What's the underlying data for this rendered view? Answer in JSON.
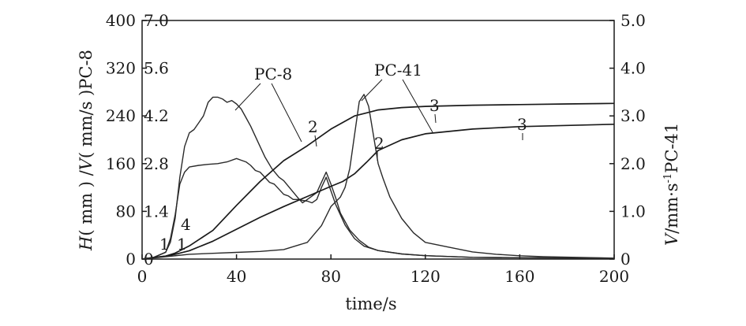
{
  "chart_data": {
    "type": "line",
    "xlabel": "time/s",
    "ylabel_left": "H (mm) /V (mm/s) PC-8",
    "ylabel_left_parts": {
      "h": "H",
      "mm1": "( mm )",
      "sep": " /",
      "v": "V",
      "mm2": "( mm/s )",
      "tail": "PC-8"
    },
    "ylabel_right": "V/mm·s⁻¹PC-41",
    "ylabel_right_parts": {
      "v": "V",
      "unit": "/mm·s",
      "sup": "-1",
      "tail": "PC-41"
    },
    "xlim": [
      0,
      200
    ],
    "x_ticks": [
      "0",
      "40",
      "80",
      "120",
      "160",
      "200"
    ],
    "x_tick_values": [
      0,
      40,
      80,
      120,
      160,
      200
    ],
    "ylim_H": [
      0,
      400
    ],
    "ylim_V_pc8": [
      0,
      7.0
    ],
    "ylim_V_pc41": [
      0,
      5.0
    ],
    "y_ticks_H": [
      "0",
      "80",
      "160",
      "240",
      "320",
      "400"
    ],
    "y_ticks_V_pc8": [
      "0",
      "1.4",
      "2.8",
      "4.2",
      "5.6",
      "7.0"
    ],
    "y_ticks_V_pc41": [
      "0",
      "1.0",
      "2.0",
      "3.0",
      "4.0",
      "5.0"
    ],
    "grid": false,
    "annotations": {
      "pc8": "PC-8",
      "pc41": "PC-41",
      "n1": "1",
      "n1b": "1",
      "n4": "4",
      "n2a": "2",
      "n2b": "2",
      "n3a": "3",
      "n3b": "3"
    },
    "series": [
      {
        "axis": "V_pc8",
        "x": [
          0,
          5,
          10,
          12,
          14,
          16,
          18,
          20,
          22,
          24,
          26,
          28,
          30,
          32,
          34,
          36,
          38,
          40,
          42,
          44,
          46,
          48,
          50,
          52,
          55,
          58,
          60,
          63,
          66,
          68,
          70,
          72,
          74,
          76,
          78,
          80,
          82,
          84,
          88,
          92,
          96,
          100,
          110,
          120,
          140,
          160,
          180,
          200
        ],
        "values": [
          0,
          0.05,
          0.2,
          0.5,
          1.2,
          2.4,
          3.3,
          3.7,
          3.8,
          4.0,
          4.2,
          4.6,
          4.75,
          4.75,
          4.7,
          4.6,
          4.65,
          4.55,
          4.4,
          4.15,
          3.9,
          3.6,
          3.3,
          3.0,
          2.65,
          2.4,
          2.3,
          2.05,
          1.8,
          1.65,
          1.75,
          1.85,
          1.95,
          2.25,
          2.55,
          2.2,
          1.8,
          1.35,
          0.85,
          0.55,
          0.35,
          0.25,
          0.15,
          0.1,
          0.05,
          0.04,
          0.03,
          0.02
        ]
      },
      {
        "axis": "V_pc8",
        "x": [
          0,
          5,
          10,
          12,
          14,
          16,
          18,
          20,
          24,
          28,
          32,
          36,
          40,
          42,
          44,
          46,
          48,
          50,
          52,
          54,
          56,
          58,
          60,
          62,
          64,
          66,
          68,
          70,
          72,
          74,
          76,
          78,
          80,
          82,
          86,
          90,
          94,
          100,
          110,
          120,
          140,
          160,
          180,
          200
        ],
        "values": [
          0,
          0.05,
          0.2,
          0.6,
          1.3,
          2.2,
          2.55,
          2.7,
          2.75,
          2.78,
          2.8,
          2.85,
          2.95,
          2.9,
          2.85,
          2.75,
          2.6,
          2.55,
          2.4,
          2.25,
          2.2,
          2.05,
          1.9,
          1.85,
          1.75,
          1.75,
          1.72,
          1.7,
          1.65,
          1.75,
          2.1,
          2.4,
          2.0,
          1.6,
          1.0,
          0.6,
          0.38,
          0.25,
          0.15,
          0.1,
          0.05,
          0.04,
          0.03,
          0.02
        ]
      },
      {
        "axis": "H",
        "x": [
          0,
          10,
          14,
          20,
          30,
          40,
          50,
          60,
          70,
          80,
          90,
          95,
          100,
          110,
          120,
          140,
          160,
          180,
          200
        ],
        "values": [
          0,
          5,
          10,
          22,
          48,
          90,
          130,
          165,
          190,
          218,
          240,
          245,
          250,
          254,
          256,
          258,
          259,
          260,
          261
        ]
      },
      {
        "axis": "H",
        "x": [
          0,
          10,
          14,
          20,
          30,
          40,
          50,
          60,
          70,
          80,
          85,
          90,
          95,
          100,
          110,
          120,
          140,
          160,
          180,
          200
        ],
        "values": [
          0,
          5,
          8,
          14,
          30,
          50,
          70,
          88,
          105,
          122,
          130,
          143,
          162,
          182,
          200,
          210,
          218,
          222,
          224,
          226
        ]
      },
      {
        "axis": "V_pc41",
        "x": [
          0,
          10,
          20,
          30,
          40,
          50,
          60,
          70,
          76,
          80,
          84,
          86,
          88,
          90,
          92,
          94,
          96,
          98,
          100,
          102,
          105,
          110,
          115,
          120,
          130,
          140,
          150,
          160,
          170,
          180,
          190,
          200
        ],
        "values": [
          0,
          0.05,
          0.1,
          0.12,
          0.14,
          0.16,
          0.2,
          0.35,
          0.7,
          1.1,
          1.3,
          1.5,
          1.9,
          2.6,
          3.3,
          3.45,
          3.2,
          2.6,
          2.0,
          1.7,
          1.3,
          0.85,
          0.55,
          0.35,
          0.25,
          0.15,
          0.1,
          0.07,
          0.05,
          0.04,
          0.03,
          0.02
        ]
      }
    ]
  }
}
